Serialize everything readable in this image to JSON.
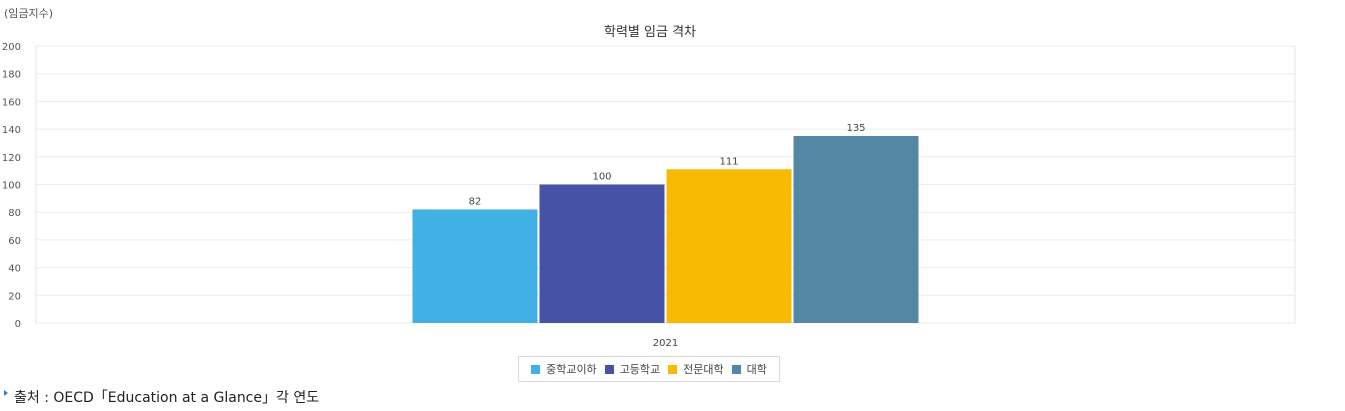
{
  "unit_label": "(임금지수)",
  "source": "출처 : OECD「Education at a Glance」각 연도",
  "chart_data": {
    "type": "bar",
    "title": "학력별 임금 격차",
    "categories": [
      "2021"
    ],
    "series": [
      {
        "name": "중학교이하",
        "values": [
          82
        ],
        "color": "#41b0e4"
      },
      {
        "name": "고등학교",
        "values": [
          100
        ],
        "color": "#4652a6"
      },
      {
        "name": "전문대학",
        "values": [
          111
        ],
        "color": "#f8ba00"
      },
      {
        "name": "대학",
        "values": [
          135
        ],
        "color": "#5487a4"
      }
    ],
    "ylim": [
      0,
      200
    ],
    "yticks": [
      0,
      20,
      40,
      60,
      80,
      100,
      120,
      140,
      160,
      180,
      200
    ],
    "grid": true,
    "legend": "bottom"
  }
}
